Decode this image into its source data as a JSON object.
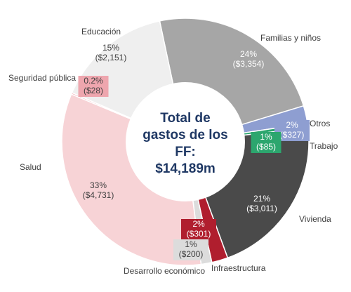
{
  "chart_data": {
    "type": "pie",
    "subtype": "donut",
    "center_text": [
      "Total de",
      "gastos de los",
      "FF:",
      "$14,189m"
    ],
    "slices": [
      {
        "name": "Familias y niños",
        "pct": "24%",
        "amount": "($3,354)",
        "value": 3354,
        "color": "#a6a6a6"
      },
      {
        "name": "Otros",
        "pct": "2%",
        "amount": "($327)",
        "value": 327,
        "color": "#8e9ed1"
      },
      {
        "name": "Trabajo",
        "pct": "1%",
        "amount": "($85)",
        "value": 85,
        "color": "#2ca66e"
      },
      {
        "name": "Vivienda",
        "pct": "21%",
        "amount": "($3,011)",
        "value": 3011,
        "color": "#4a4a4a"
      },
      {
        "name": "Infraestructura",
        "pct": "2%",
        "amount": "($301)",
        "value": 301,
        "color": "#b01e2e"
      },
      {
        "name": "Desarrollo económico",
        "pct": "1%",
        "amount": "($200)",
        "value": 200,
        "color": "#dcdcdc"
      },
      {
        "name": "Salud",
        "pct": "33%",
        "amount": "($4,731)",
        "value": 4731,
        "color": "#f7d3d6"
      },
      {
        "name": "Seguridad pública",
        "pct": "0.2%",
        "amount": "($28)",
        "value": 28,
        "color": "#eea6ae"
      },
      {
        "name": "Educación",
        "pct": "15%",
        "amount": "($2,151)",
        "value": 2151,
        "color": "#efefef"
      }
    ]
  }
}
